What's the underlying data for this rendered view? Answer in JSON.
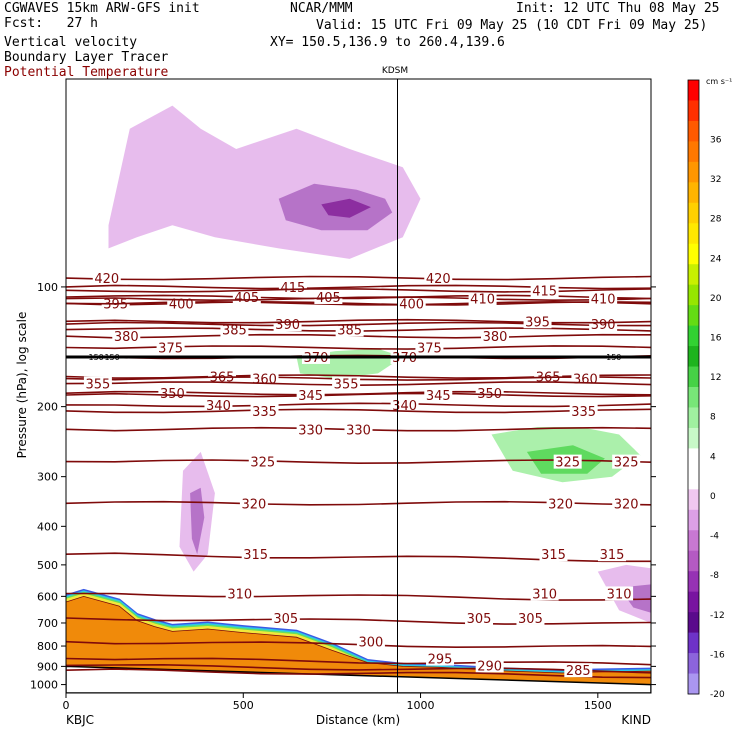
{
  "header": {
    "model": "CGWAVES 15km ARW-GFS init",
    "forecast": "Fcst:   27 h",
    "org": "NCAR/MMM",
    "init": "Init: 12 UTC Thu 08 May 25",
    "valid": "Valid: 15 UTC Fri 09 May 25 (10 CDT Fri 09 May 25)",
    "xy": "XY= 150.5,136.9 to 260.4,139.6",
    "fields": [
      "Vertical velocity",
      "Boundary Layer Tracer",
      "Potential Temperature"
    ]
  },
  "colors": {
    "theta": "#7f0a0a",
    "terrain": "#f08a0a",
    "tropopause": "#000000"
  },
  "chart_data": {
    "type": "heatmap",
    "title": "KDSM",
    "xlabel": "Distance (km)",
    "ylabel": "Pressure (hPa), log scale",
    "xlim": [
      0,
      1650
    ],
    "ylim": [
      1050,
      30
    ],
    "y_scale": "log",
    "x_ticks": [
      0,
      500,
      1000,
      1500
    ],
    "x_tick_labels": [
      "0",
      "500",
      "1000",
      "1500"
    ],
    "y_ticks": [
      100,
      200,
      300,
      400,
      500,
      600,
      700,
      800,
      900,
      1000
    ],
    "y_tick_labels": [
      "100",
      "200",
      "300",
      "400",
      "500",
      "600",
      "700",
      "800",
      "900",
      "1000"
    ],
    "end_labels": [
      "KBJC",
      "KIND"
    ],
    "vertical_marker": {
      "label": "KDSM",
      "x": 935
    },
    "colorbar": {
      "unit": "cm s⁻¹",
      "labels": [
        "36",
        "32",
        "28",
        "24",
        "20",
        "16",
        "12",
        "8",
        "4",
        "0",
        "-4",
        "-8",
        "-12",
        "-16",
        "-20"
      ],
      "colors": [
        "#ff0000",
        "#ff3000",
        "#ff5a00",
        "#ff7800",
        "#ff9600",
        "#ffb400",
        "#ffd000",
        "#ffe800",
        "#ffff00",
        "#c8f000",
        "#96e600",
        "#64dc14",
        "#32d232",
        "#1eb41e",
        "#46d246",
        "#78e678",
        "#a0f0a0",
        "#c8f8c8",
        "#ffffff",
        "#ffffff",
        "#f0c8f0",
        "#dca0e6",
        "#c878d2",
        "#b45ac3",
        "#9632b4",
        "#7814a0",
        "#5a0a8c",
        "#6e32c8",
        "#8c64dc",
        "#aa96f0"
      ]
    },
    "theta_contours": [
      {
        "label": "420",
        "p": 95,
        "labels_at": [
          115,
          1050
        ]
      },
      {
        "label": "395",
        "p": 110,
        "labels_at": [
          140
        ]
      },
      {
        "label": "400",
        "p": 110,
        "labels_at": [
          325,
          975
        ]
      },
      {
        "label": "405",
        "p": 106,
        "labels_at": [
          510,
          740
        ]
      },
      {
        "label": "415",
        "p": 100,
        "labels_at": [
          640
        ]
      },
      {
        "label": "410",
        "p": 107,
        "labels_at": [
          1175,
          1515
        ]
      },
      {
        "label": "415",
        "p": 102,
        "labels_at": [
          1350
        ]
      },
      {
        "label": "380",
        "p": 133,
        "labels_at": [
          170,
          1210
        ]
      },
      {
        "label": "375",
        "p": 142,
        "labels_at": [
          295,
          1025
        ]
      },
      {
        "label": "385",
        "p": 128,
        "labels_at": [
          475,
          800
        ]
      },
      {
        "label": "390",
        "p": 124,
        "labels_at": [
          625,
          1515
        ]
      },
      {
        "label": "395",
        "p": 122,
        "labels_at": [
          1330
        ]
      },
      {
        "label": "370",
        "p": 150,
        "labels_at": [
          705,
          955
        ]
      },
      {
        "label": "365",
        "p": 168,
        "labels_at": [
          440,
          1360
        ]
      },
      {
        "label": "360",
        "p": 170,
        "labels_at": [
          560,
          1465
        ]
      },
      {
        "label": "355",
        "p": 175,
        "labels_at": [
          90,
          790
        ]
      },
      {
        "label": "350",
        "p": 185,
        "labels_at": [
          300,
          1195
        ]
      },
      {
        "label": "345",
        "p": 187,
        "labels_at": [
          690,
          1050
        ]
      },
      {
        "label": "340",
        "p": 198,
        "labels_at": [
          430,
          955
        ]
      },
      {
        "label": "335",
        "p": 205,
        "labels_at": [
          560,
          1460
        ]
      },
      {
        "label": "330",
        "p": 228,
        "labels_at": [
          690,
          825
        ]
      },
      {
        "label": "325",
        "p": 275,
        "labels_at": [
          555,
          1415,
          1580
        ]
      },
      {
        "label": "320",
        "p": 350,
        "labels_at": [
          530,
          1395,
          1580
        ]
      },
      {
        "label": "315",
        "p": 470,
        "labels_at": [
          535,
          1375,
          1540
        ]
      },
      {
        "label": "310",
        "p": 590,
        "labels_at": [
          490,
          1350,
          1560
        ]
      },
      {
        "label": "305",
        "p": 680,
        "labels_at": [
          620,
          1165,
          1310
        ]
      },
      {
        "label": "300",
        "p": 780,
        "labels_at": [
          860
        ]
      },
      {
        "label": "295",
        "p": 860,
        "labels_at": [
          1055
        ]
      },
      {
        "label": "290",
        "p": 895,
        "labels_at": [
          1195
        ]
      },
      {
        "label": "285",
        "p": 920,
        "labels_at": [
          1445
        ]
      }
    ],
    "tropopause_label": "150",
    "tropopause_p": 150,
    "terrain_top": [
      [
        0,
        620
      ],
      [
        50,
        600
      ],
      [
        150,
        635
      ],
      [
        200,
        690
      ],
      [
        250,
        715
      ],
      [
        300,
        735
      ],
      [
        400,
        725
      ],
      [
        500,
        740
      ],
      [
        650,
        760
      ],
      [
        750,
        820
      ],
      [
        850,
        880
      ],
      [
        950,
        900
      ],
      [
        1050,
        905
      ],
      [
        1150,
        915
      ],
      [
        1250,
        925
      ],
      [
        1400,
        935
      ],
      [
        1500,
        930
      ],
      [
        1650,
        925
      ]
    ],
    "vertical_velocity_regions": [
      {
        "x": [
          120,
          180,
          300,
          380,
          480,
          650,
          800,
          950,
          1000,
          950,
          800,
          600,
          420,
          300,
          200,
          120
        ],
        "y": [
          70,
          40,
          35,
          40,
          45,
          40,
          45,
          50,
          60,
          75,
          85,
          80,
          75,
          70,
          75,
          80
        ],
        "value": -4
      },
      {
        "x": [
          600,
          700,
          820,
          900,
          920,
          850,
          720,
          620
        ],
        "y": [
          60,
          55,
          57,
          60,
          65,
          72,
          72,
          68
        ],
        "value": -8
      },
      {
        "x": [
          720,
          800,
          860,
          800,
          740
        ],
        "y": [
          62,
          60,
          63,
          67,
          66
        ],
        "value": -12
      },
      {
        "x": [
          650,
          760,
          880,
          950,
          880,
          760,
          660
        ],
        "y": [
          150,
          145,
          143,
          150,
          165,
          170,
          165
        ],
        "value": 4
      },
      {
        "x": [
          1200,
          1330,
          1450,
          1560,
          1620,
          1540,
          1400,
          1260
        ],
        "y": [
          235,
          225,
          225,
          235,
          265,
          300,
          310,
          290
        ],
        "value": 4
      },
      {
        "x": [
          1300,
          1430,
          1520,
          1470,
          1340
        ],
        "y": [
          260,
          250,
          270,
          295,
          295
        ],
        "value": 8
      },
      {
        "x": [
          1500,
          1580,
          1650,
          1650,
          1560
        ],
        "y": [
          520,
          500,
          510,
          700,
          650
        ],
        "value": -4
      },
      {
        "x": [
          1560,
          1650,
          1650,
          1600
        ],
        "y": [
          570,
          560,
          660,
          640
        ],
        "value": -8
      },
      {
        "x": [
          330,
          380,
          420,
          400,
          360,
          320
        ],
        "y": [
          290,
          260,
          330,
          470,
          520,
          450
        ],
        "value": -4
      },
      {
        "x": [
          350,
          380,
          390,
          370,
          355
        ],
        "y": [
          330,
          320,
          380,
          470,
          430
        ],
        "value": -8
      }
    ]
  }
}
